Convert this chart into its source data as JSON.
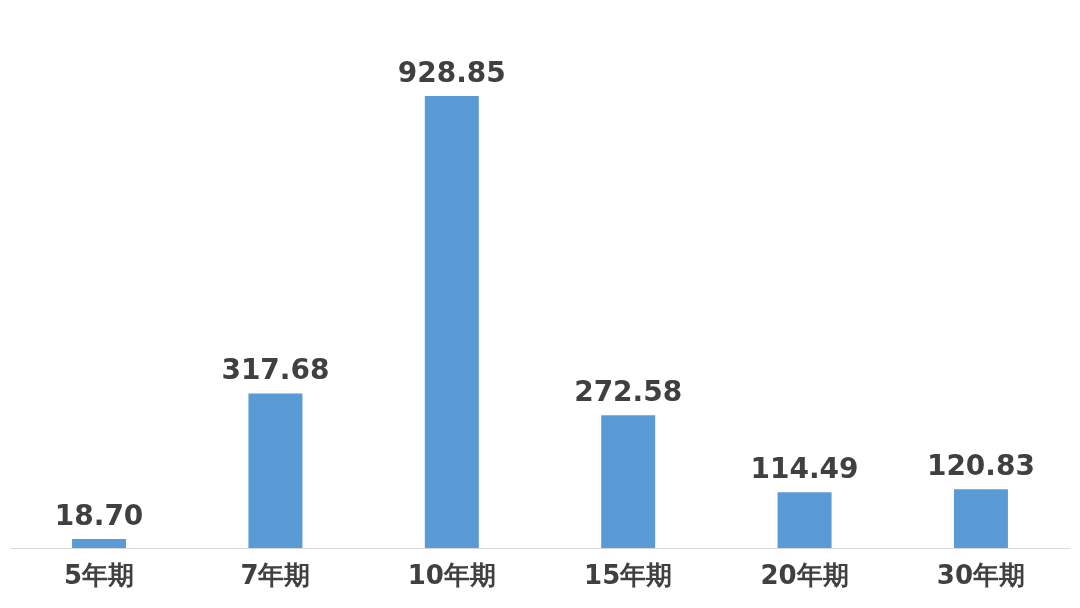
{
  "chart_data": {
    "type": "bar",
    "categories": [
      "5年期",
      "7年期",
      "10年期",
      "15年期",
      "20年期",
      "30年期"
    ],
    "values": [
      18.7,
      317.68,
      928.85,
      272.58,
      114.49,
      120.83
    ],
    "value_labels": [
      "18.70",
      "317.68",
      "928.85",
      "272.58",
      "114.49",
      "120.83"
    ],
    "color": "#5b9bd5",
    "grid": false,
    "tick_labels": "x"
  }
}
